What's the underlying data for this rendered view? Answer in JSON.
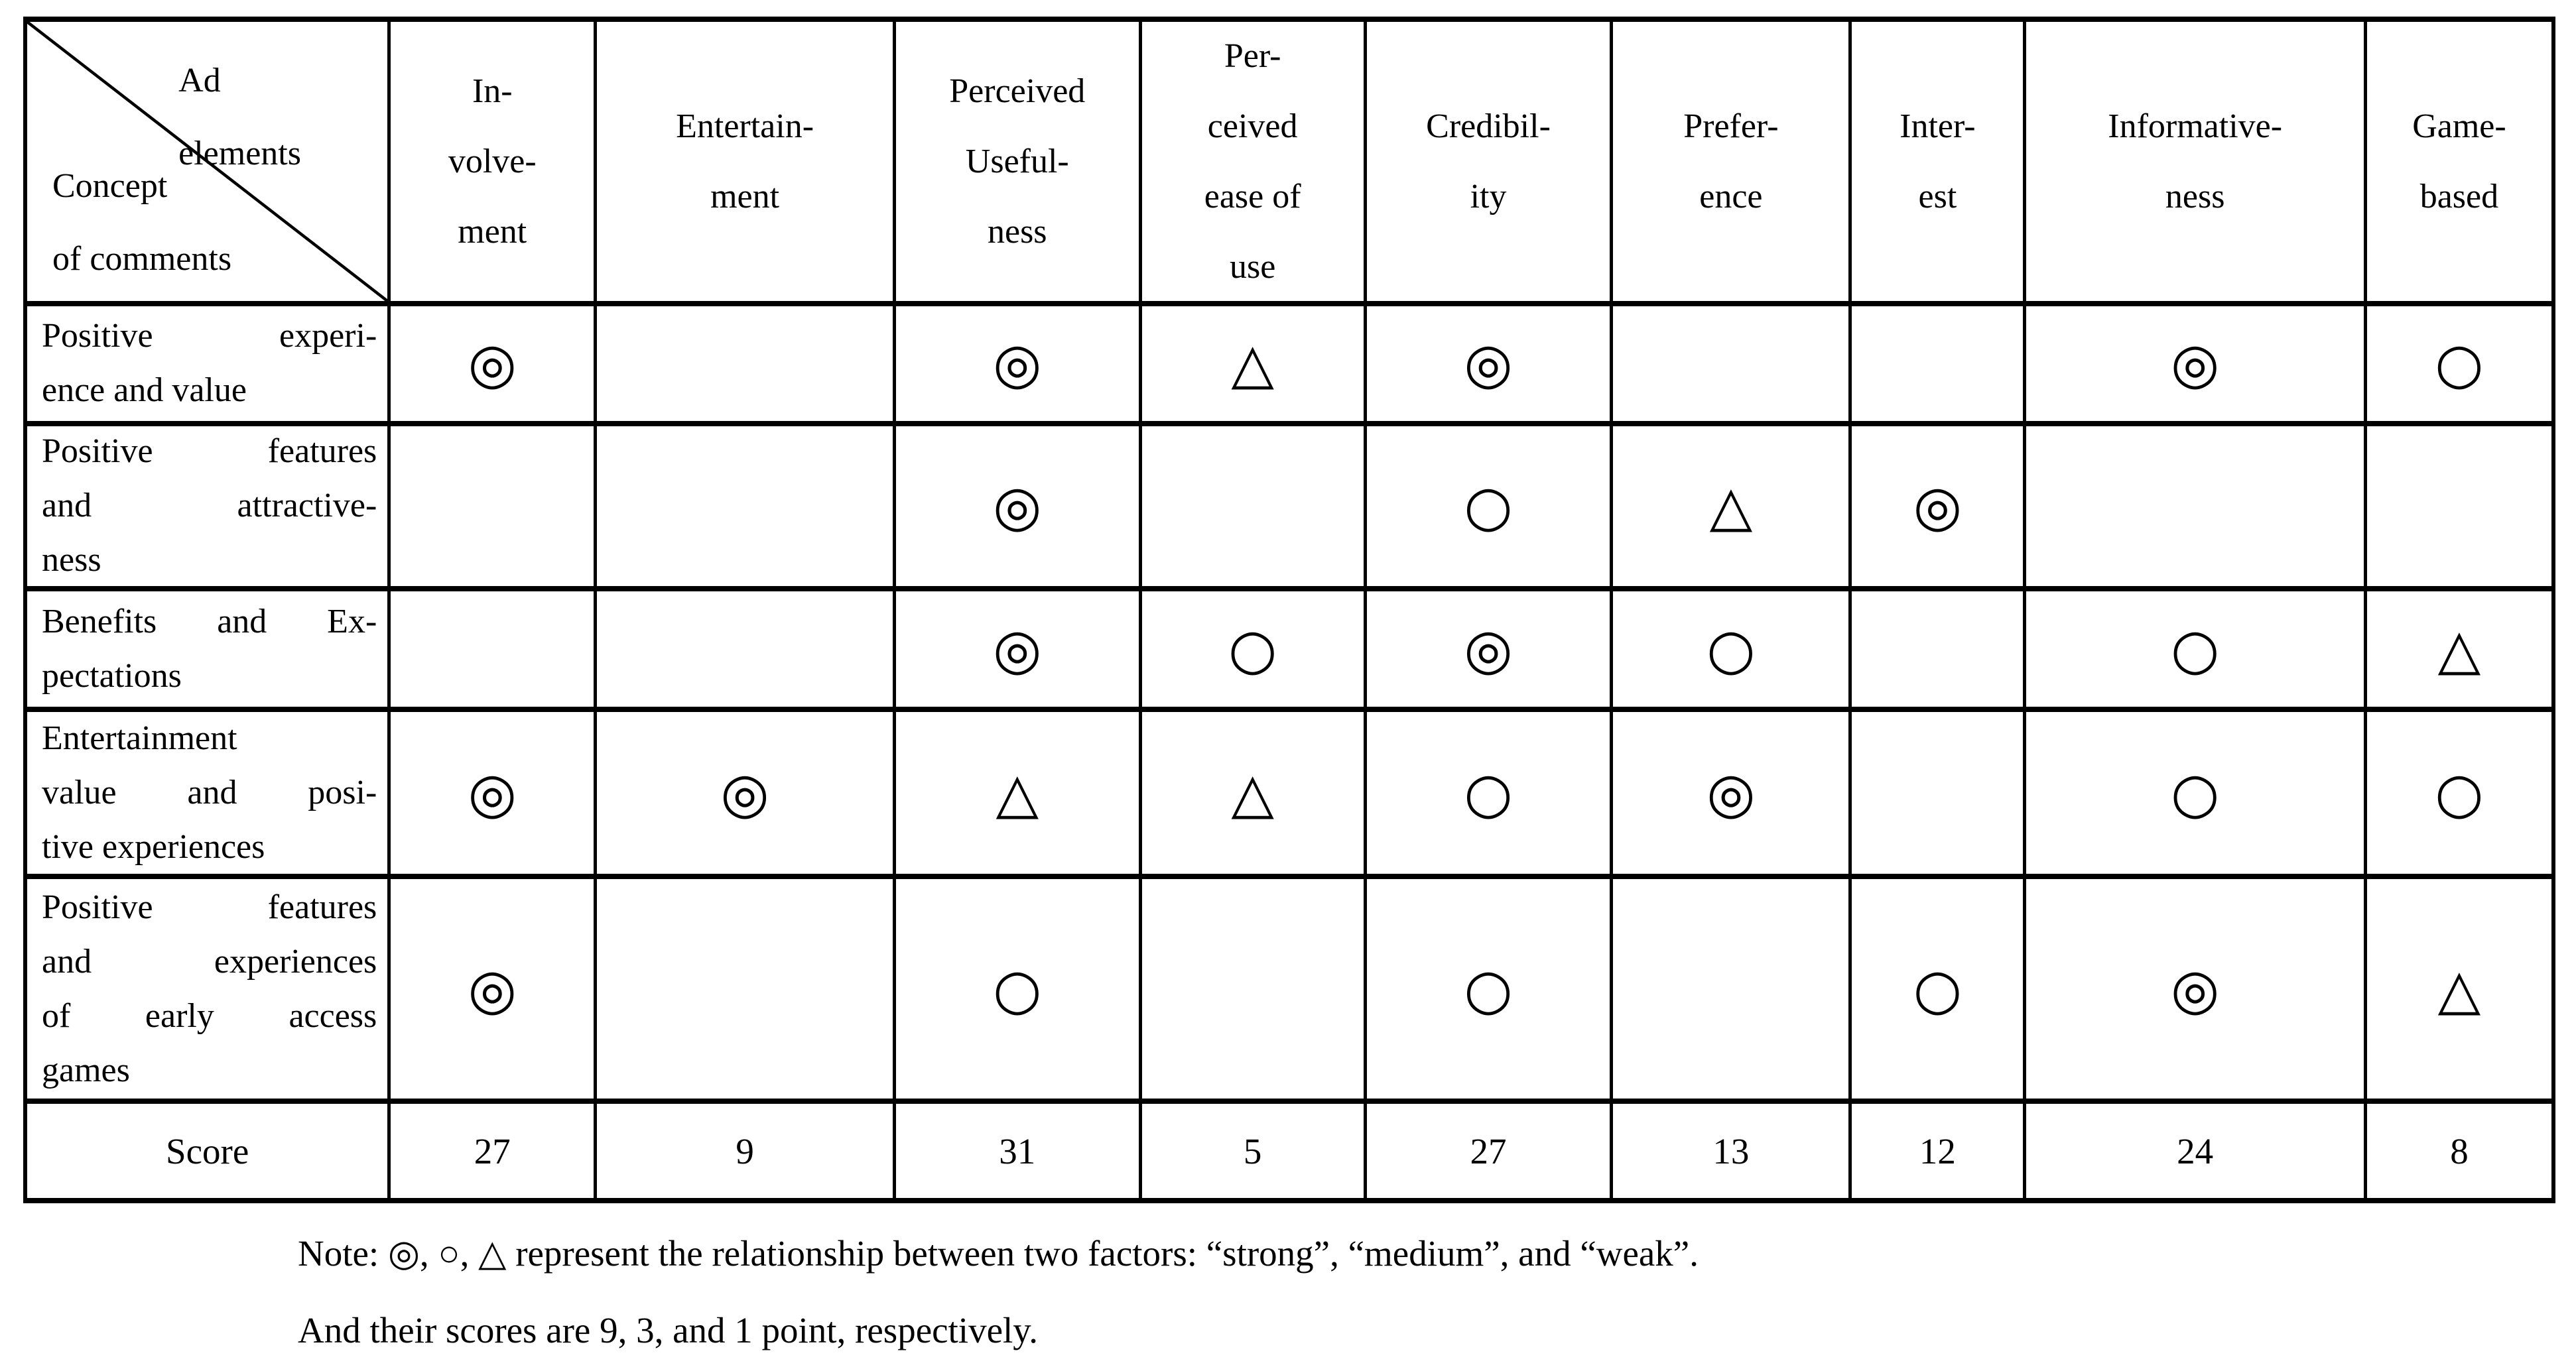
{
  "table": {
    "corner": {
      "ad_lines": [
        "Ad",
        "elements"
      ],
      "concept_lines": [
        "Concept",
        "of comments"
      ]
    },
    "legend": {
      "strong": "◎",
      "medium": "○",
      "weak": "△"
    },
    "columns": [
      {
        "lines": [
          "In-",
          "volve-",
          "ment"
        ]
      },
      {
        "lines": [
          "Entertain-",
          "ment"
        ]
      },
      {
        "lines": [
          "Perceived",
          "Useful-",
          "ness"
        ]
      },
      {
        "lines": [
          "Per-",
          "ceived",
          "ease of",
          "use"
        ]
      },
      {
        "lines": [
          "Credibil-",
          "ity"
        ]
      },
      {
        "lines": [
          "Prefer-",
          "ence"
        ]
      },
      {
        "lines": [
          "Inter-",
          "est"
        ]
      },
      {
        "lines": [
          "Informative-",
          "ness"
        ]
      },
      {
        "lines": [
          "Game-",
          "based"
        ]
      }
    ],
    "rows": [
      {
        "label_lines": [
          "Positive experi-",
          "ence and value"
        ],
        "symbols": [
          "strong",
          "",
          "strong",
          "weak",
          "strong",
          "",
          "",
          "strong",
          "medium"
        ]
      },
      {
        "label_lines": [
          "Positive features",
          "and attractive-",
          "ness"
        ],
        "symbols": [
          "",
          "",
          "strong",
          "",
          "medium",
          "weak",
          "strong",
          "",
          ""
        ]
      },
      {
        "label_lines": [
          "Benefits and Ex-",
          "pectations"
        ],
        "symbols": [
          "",
          "",
          "strong",
          "medium",
          "strong",
          "medium",
          "",
          "medium",
          "weak"
        ]
      },
      {
        "label_lines": [
          "Entertainment",
          "value and posi-",
          "tive experiences"
        ],
        "symbols": [
          "strong",
          "strong",
          "weak",
          "weak",
          "medium",
          "strong",
          "",
          "medium",
          "medium"
        ]
      },
      {
        "label_lines": [
          "Positive features",
          "and experiences",
          "of early access",
          "games"
        ],
        "symbols": [
          "strong",
          "",
          "medium",
          "",
          "medium",
          "",
          "medium",
          "strong",
          "weak"
        ]
      }
    ],
    "score": {
      "label": "Score",
      "values": [
        "27",
        "9",
        "31",
        "5",
        "27",
        "13",
        "12",
        "24",
        "8"
      ]
    }
  },
  "note": {
    "line1": "Note: ◎, ○, △ represent the relationship between two factors: “strong”, “medium”, and “weak”.",
    "line2": "And their scores are 9, 3, and 1 point, respectively."
  }
}
